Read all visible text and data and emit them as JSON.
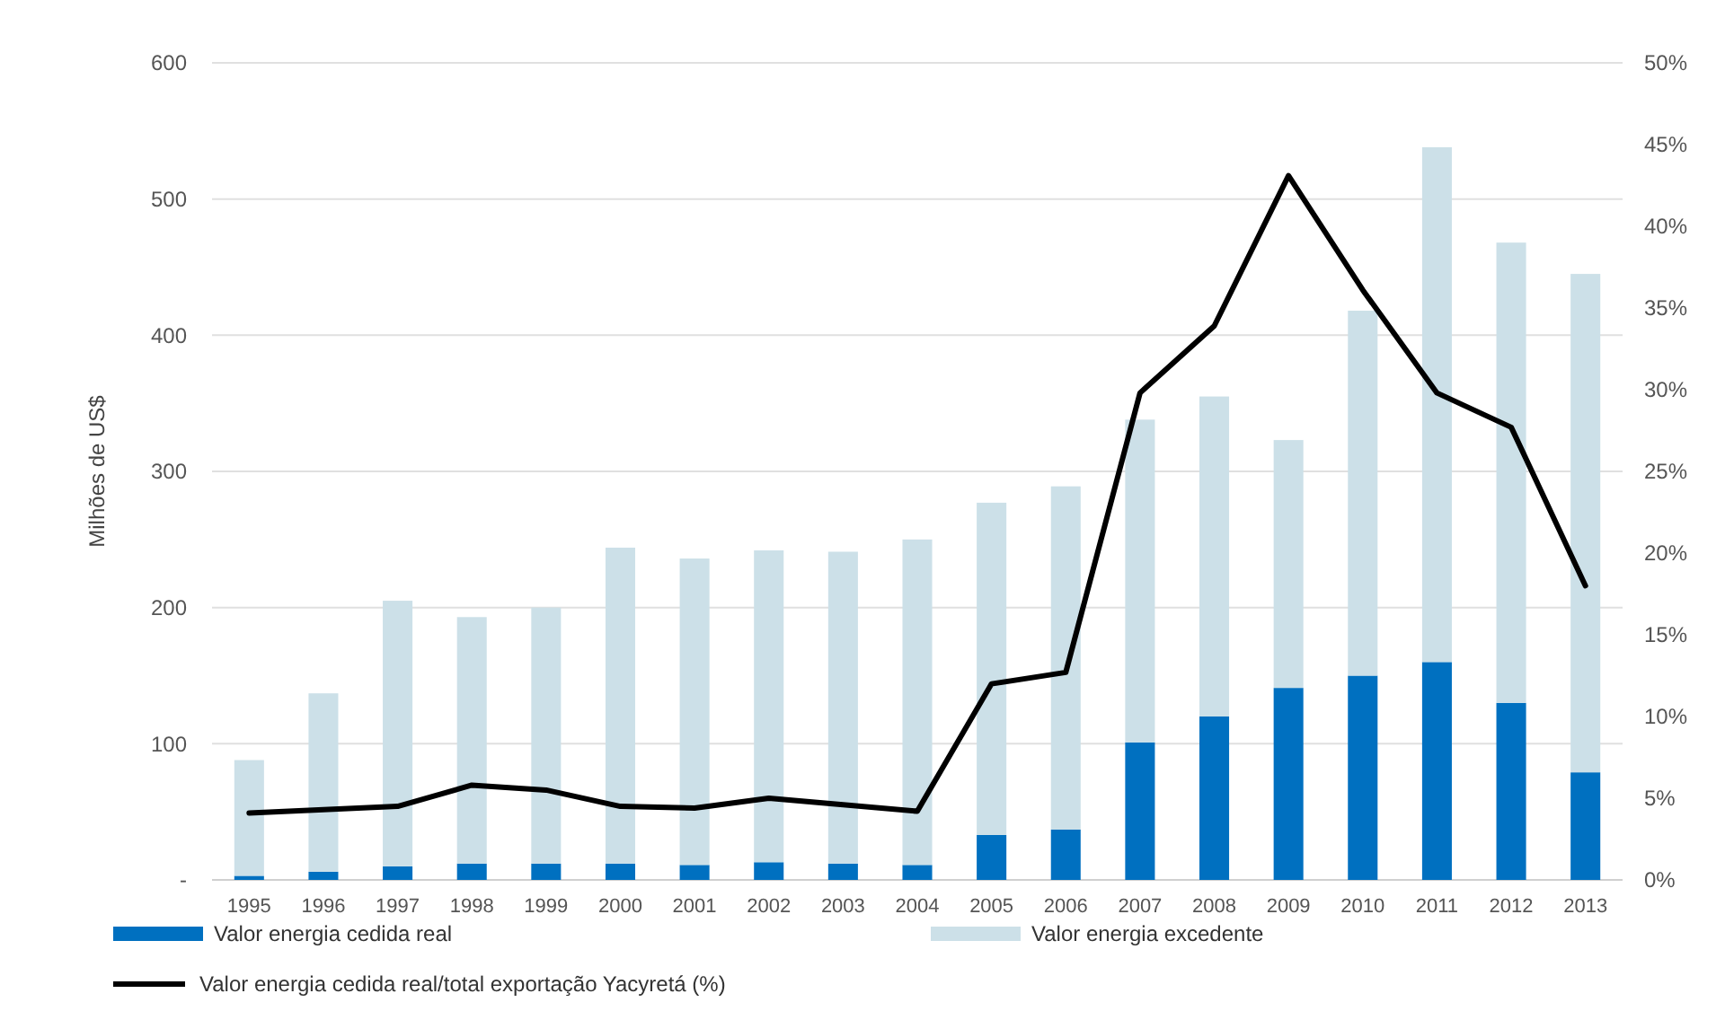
{
  "chart_data": {
    "type": "bar",
    "stacked": true,
    "ylabel": "Milhões de US$",
    "categories": [
      "1995",
      "1996",
      "1997",
      "1998",
      "1999",
      "2000",
      "2001",
      "2002",
      "2003",
      "2004",
      "2005",
      "2006",
      "2007",
      "2008",
      "2009",
      "2010",
      "2011",
      "2012",
      "2013"
    ],
    "series": [
      {
        "name": "Valor energia cedida real",
        "color": "#0070c0",
        "values": [
          3,
          6,
          10,
          12,
          12,
          12,
          11,
          13,
          12,
          11,
          33,
          37,
          101,
          120,
          141,
          150,
          160,
          130,
          79
        ]
      },
      {
        "name": "Valor energia excedente",
        "color": "#cce0e8",
        "values": [
          85,
          131,
          195,
          181,
          188,
          232,
          225,
          229,
          229,
          239,
          244,
          252,
          237,
          235,
          182,
          268,
          378,
          338,
          366
        ]
      },
      {
        "name": "Valor energia cedida real/total exportação Yacyretá (%)",
        "type": "line",
        "axis": "y2",
        "color": "#000000",
        "values": [
          4.1,
          4.3,
          4.5,
          5.8,
          5.5,
          4.5,
          4.4,
          5.0,
          4.6,
          4.2,
          12.0,
          12.7,
          29.8,
          33.9,
          43.1,
          36.1,
          29.8,
          27.7,
          18.0
        ]
      }
    ],
    "ylim": [
      0,
      600
    ],
    "yticks": [
      {
        "value": 0,
        "label": "-"
      },
      100,
      200,
      300,
      400,
      500,
      600
    ],
    "y2lim": [
      0,
      50
    ],
    "y2ticks": [
      {
        "value": 0,
        "label": "0%"
      },
      {
        "value": 5,
        "label": "5%"
      },
      {
        "value": 10,
        "label": "10%"
      },
      {
        "value": 15,
        "label": "15%"
      },
      {
        "value": 20,
        "label": "20%"
      },
      {
        "value": 25,
        "label": "25%"
      },
      {
        "value": 30,
        "label": "30%"
      },
      {
        "value": 35,
        "label": "35%"
      },
      {
        "value": 40,
        "label": "40%"
      },
      {
        "value": 45,
        "label": "45%"
      },
      {
        "value": 50,
        "label": "50%"
      }
    ],
    "grid": "y",
    "legend": "bottom",
    "marker": "none",
    "line_style": "solid"
  }
}
